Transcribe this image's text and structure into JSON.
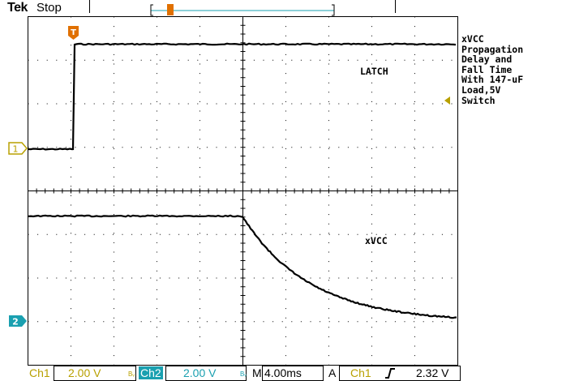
{
  "header": {
    "brand": "Tek",
    "acq_state": "Stop"
  },
  "annotations": {
    "title_note": "xVCC\nPropagation\nDelay and\nFall Time\nWith 147-uF\nLoad,5V\nSwitch",
    "ch1_waveform_label": "LATCH",
    "ch2_waveform_label": "xVCC"
  },
  "markers": {
    "trigger": "T",
    "ch1": "1",
    "ch2": "2"
  },
  "readout": {
    "ch1_label": "Ch1",
    "ch1_scale": "2.00 V",
    "ch2_label": "Ch2",
    "ch2_scale": "2.00 V",
    "bw_symbol": "BW",
    "horiz_prefix": "M",
    "horiz_scale": "4.00ms",
    "trigger_mode": "A",
    "trigger_source": "Ch1",
    "trigger_slope_icon": "rising-edge-icon",
    "trigger_level": "2.32 V"
  },
  "colors": {
    "ch1": "#b8a000",
    "ch2": "#1aa0b0",
    "trigger": "#e07000",
    "grid": "#000000"
  }
}
